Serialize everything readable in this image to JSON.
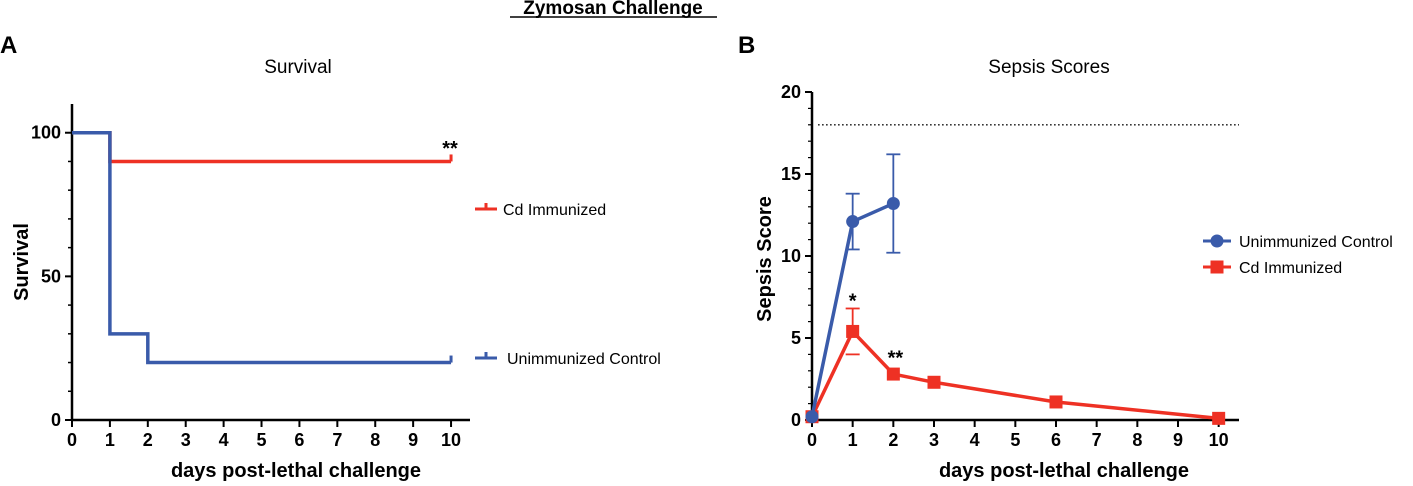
{
  "figure_title": "Zymosan Challenge",
  "panels": {
    "a_label": "A",
    "b_label": "B"
  },
  "colors": {
    "red": "#EE3124",
    "blue": "#3A5BAA",
    "axis": "#000000"
  },
  "chart_data": [
    {
      "type": "line",
      "subtype": "kaplan-meier",
      "title": "Survival",
      "xlabel": "days post-lethal challenge",
      "ylabel": "Survival",
      "xlim": [
        0,
        10.5
      ],
      "ylim": [
        0,
        110
      ],
      "xticks": [
        0,
        1,
        2,
        3,
        4,
        5,
        6,
        7,
        8,
        9,
        10
      ],
      "yticks": [
        0,
        50,
        100
      ],
      "annotations": [
        {
          "text": "**",
          "x": 10,
          "y": 93
        }
      ],
      "series": [
        {
          "name": "Cd Immunized",
          "color": "#EE3124",
          "steps": [
            [
              0,
              100
            ],
            [
              1,
              100
            ],
            [
              1,
              90
            ],
            [
              10,
              90
            ]
          ],
          "censor": [
            [
              10,
              90
            ]
          ]
        },
        {
          "name": "Unimmunized Control",
          "color": "#3A5BAA",
          "steps": [
            [
              0,
              100
            ],
            [
              1,
              100
            ],
            [
              1,
              30
            ],
            [
              2,
              30
            ],
            [
              2,
              20
            ],
            [
              10,
              20
            ]
          ],
          "censor": [
            [
              10,
              20
            ]
          ]
        }
      ]
    },
    {
      "type": "line",
      "title": "Sepsis Scores",
      "xlabel": "days post-lethal challenge",
      "ylabel": "Sepsis Score",
      "xlim": [
        0,
        10.5
      ],
      "ylim": [
        0,
        20
      ],
      "xticks": [
        0,
        1,
        2,
        3,
        4,
        5,
        6,
        7,
        8,
        9,
        10
      ],
      "yticks": [
        0,
        5,
        10,
        15,
        20
      ],
      "reference_line": 18,
      "annotations": [
        {
          "text": "*",
          "x": 1,
          "y": 7.3
        },
        {
          "text": "**",
          "x": 2.05,
          "y": 3.8
        }
      ],
      "series": [
        {
          "name": "Unimmunized Control",
          "color": "#3A5BAA",
          "marker": "circle",
          "x": [
            0,
            1,
            2
          ],
          "y": [
            0.2,
            12.1,
            13.2
          ],
          "err": [
            0,
            1.7,
            3.0
          ]
        },
        {
          "name": "Cd Immunized",
          "color": "#EE3124",
          "marker": "square",
          "x": [
            0,
            1,
            2,
            3,
            6,
            10
          ],
          "y": [
            0.2,
            5.4,
            2.8,
            2.3,
            1.1,
            0.1
          ],
          "err": [
            0,
            1.4,
            0,
            0,
            0,
            0
          ]
        }
      ]
    }
  ]
}
